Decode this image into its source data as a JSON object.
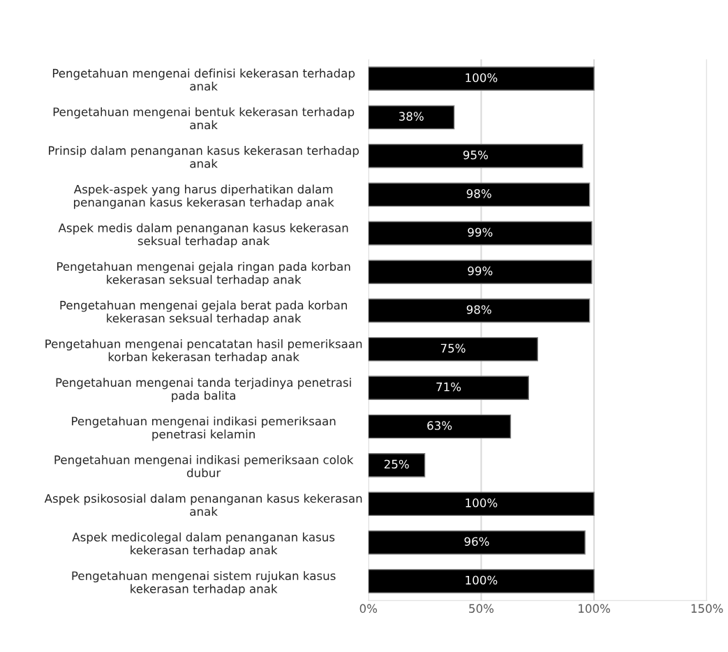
{
  "chart_data": {
    "type": "bar",
    "orientation": "horizontal",
    "categories": [
      "Pengetahuan mengenai definisi kekerasan terhadap\nanak",
      "Pengetahuan mengenai bentuk kekerasan terhadap\nanak",
      "Prinsip dalam penanganan kasus kekerasan terhadap\nanak",
      "Aspek-aspek yang harus diperhatikan dalam\npenanganan kasus kekerasan terhadap anak",
      "Aspek medis dalam penanganan kasus kekerasan\nseksual terhadap anak",
      "Pengetahuan mengenai gejala ringan pada korban\nkekerasan seksual terhadap anak",
      "Pengetahuan mengenai gejala berat pada korban\nkekerasan seksual terhadap anak",
      "Pengetahuan mengenai pencatatan hasil pemeriksaan\nkorban kekerasan terhadap anak",
      "Pengetahuan mengenai tanda terjadinya penetrasi\npada balita",
      "Pengetahuan mengenai indikasi pemeriksaan\npenetrasi kelamin",
      "Pengetahuan mengenai indikasi pemeriksaan colok\ndubur",
      "Aspek psikososial dalam penanganan kasus kekerasan\nanak",
      "Aspek medicolegal dalam penanganan kasus\nkekerasan terhadap anak",
      "Pengetahuan mengenai sistem rujukan kasus\nkekerasan terhadap anak"
    ],
    "values": [
      100,
      38,
      95,
      98,
      99,
      99,
      98,
      75,
      71,
      63,
      25,
      100,
      96,
      100
    ],
    "value_labels": [
      "100%",
      "38%",
      "95%",
      "98%",
      "99%",
      "99%",
      "98%",
      "75%",
      "71%",
      "63%",
      "25%",
      "100%",
      "96%",
      "100%"
    ],
    "color": "#000000",
    "xlim": [
      0,
      150
    ],
    "xticks": [
      {
        "value": 0,
        "label": "0%"
      },
      {
        "value": 50,
        "label": "50%"
      },
      {
        "value": 100,
        "label": "100%"
      },
      {
        "value": 150,
        "label": "150%"
      }
    ],
    "grid": "x"
  }
}
